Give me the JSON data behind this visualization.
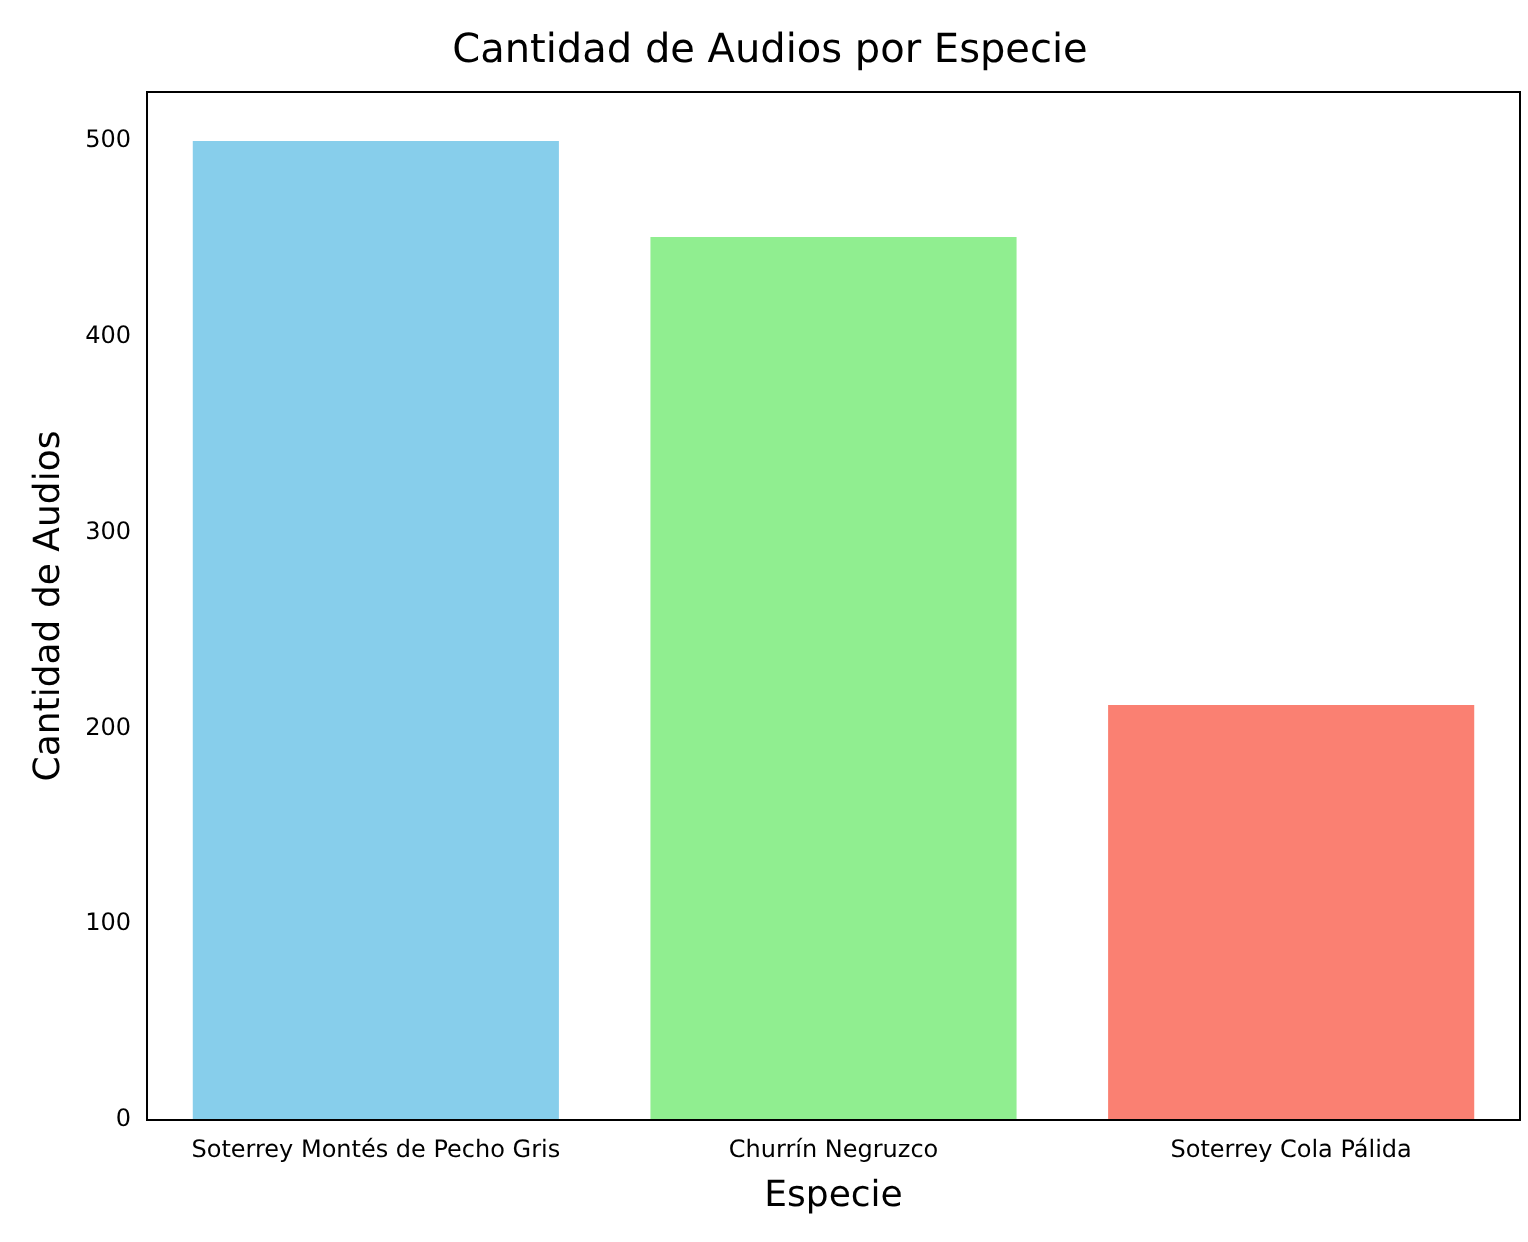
{
  "chart_data": {
    "type": "bar",
    "title": "Cantidad de Audios por Especie",
    "xlabel": "Especie",
    "ylabel": "Cantidad de Audios",
    "categories": [
      "Soterrey Montés de Pecho Gris",
      "Churrín Negruzco",
      "Soterrey Cola Pálida"
    ],
    "values": [
      500,
      451,
      212
    ],
    "colors": [
      "#87ceeb",
      "#90ee90",
      "#fa8072"
    ],
    "ylim": [
      0,
      525
    ],
    "yticks": [
      0,
      100,
      200,
      300,
      400,
      500
    ],
    "grid": false,
    "legend": false
  }
}
